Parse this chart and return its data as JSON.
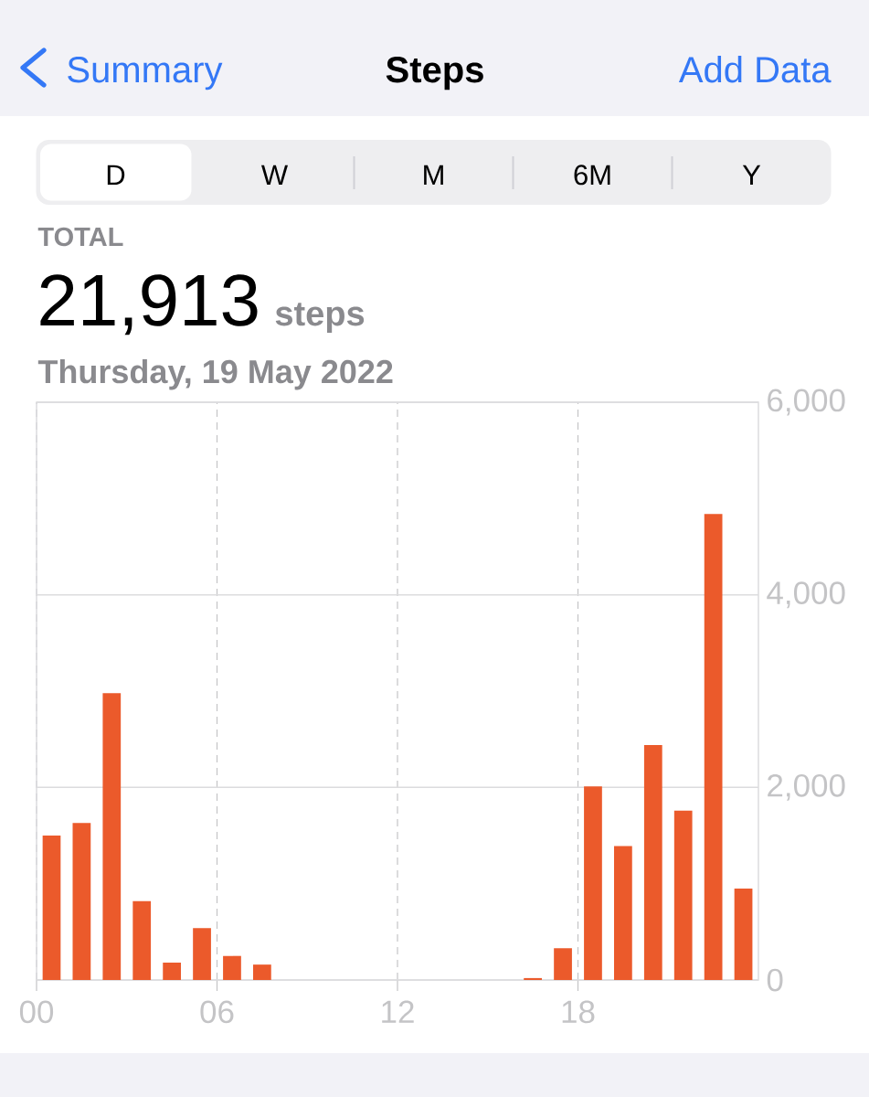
{
  "chart_data": {
    "type": "bar",
    "title": "Steps",
    "subtitle": "Thursday, 19 May 2022",
    "annotations": [
      "Summary",
      "Add Data",
      "D",
      "W",
      "M",
      "6M",
      "Y",
      "TOTAL",
      "21,913",
      "steps"
    ],
    "x": [
      0.5,
      1.5,
      2.5,
      3.5,
      4.5,
      5.5,
      6.5,
      7.5,
      8.5,
      9.5,
      10.5,
      11.5,
      12.5,
      13.5,
      14.5,
      15.5,
      16.5,
      17.5,
      18.5,
      19.5,
      20.5,
      21.5,
      22.5,
      23.5
    ],
    "values": [
      1500,
      1630,
      2980,
      820,
      180,
      540,
      250,
      160,
      null,
      null,
      null,
      null,
      null,
      null,
      null,
      null,
      20,
      330,
      2010,
      1390,
      2440,
      1760,
      4840,
      950
    ],
    "color": "#eb5a2b",
    "xlim": [
      0,
      24
    ],
    "xticks": [
      {
        "value": 0,
        "label": "00"
      },
      {
        "value": 6,
        "label": "06"
      },
      12,
      18
    ],
    "ylim": [
      0,
      6000
    ],
    "yticks": [
      0,
      {
        "value": 2000,
        "label": "2,000"
      },
      {
        "value": 4000,
        "label": "4,000"
      },
      {
        "value": 6000,
        "label": "6,000"
      }
    ],
    "grid": true
  }
}
